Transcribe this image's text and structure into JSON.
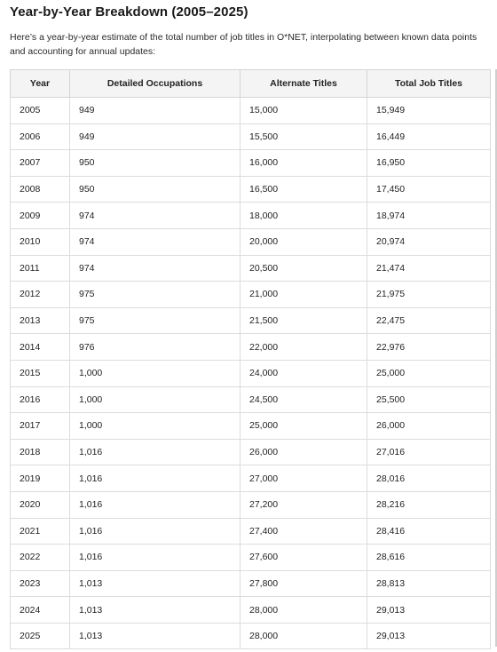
{
  "section": {
    "title": "Year-by-Year Breakdown (2005–2025)",
    "intro": "Here’s a year-by-year estimate of the total number of job titles in O*NET, interpolating between known data points and accounting for annual updates:"
  },
  "table": {
    "headers": [
      "Year",
      "Detailed Occupations",
      "Alternate Titles",
      "Total Job Titles"
    ],
    "rows": [
      [
        "2005",
        "949",
        "15,000",
        "15,949"
      ],
      [
        "2006",
        "949",
        "15,500",
        "16,449"
      ],
      [
        "2007",
        "950",
        "16,000",
        "16,950"
      ],
      [
        "2008",
        "950",
        "16,500",
        "17,450"
      ],
      [
        "2009",
        "974",
        "18,000",
        "18,974"
      ],
      [
        "2010",
        "974",
        "20,000",
        "20,974"
      ],
      [
        "2011",
        "974",
        "20,500",
        "21,474"
      ],
      [
        "2012",
        "975",
        "21,000",
        "21,975"
      ],
      [
        "2013",
        "975",
        "21,500",
        "22,475"
      ],
      [
        "2014",
        "976",
        "22,000",
        "22,976"
      ],
      [
        "2015",
        "1,000",
        "24,000",
        "25,000"
      ],
      [
        "2016",
        "1,000",
        "24,500",
        "25,500"
      ],
      [
        "2017",
        "1,000",
        "25,000",
        "26,000"
      ],
      [
        "2018",
        "1,016",
        "26,000",
        "27,016"
      ],
      [
        "2019",
        "1,016",
        "27,000",
        "28,016"
      ],
      [
        "2020",
        "1,016",
        "27,200",
        "28,216"
      ],
      [
        "2021",
        "1,016",
        "27,400",
        "28,416"
      ],
      [
        "2022",
        "1,016",
        "27,600",
        "28,616"
      ],
      [
        "2023",
        "1,013",
        "27,800",
        "28,813"
      ],
      [
        "2024",
        "1,013",
        "28,000",
        "29,013"
      ],
      [
        "2025",
        "1,013",
        "28,000",
        "29,013"
      ]
    ]
  }
}
